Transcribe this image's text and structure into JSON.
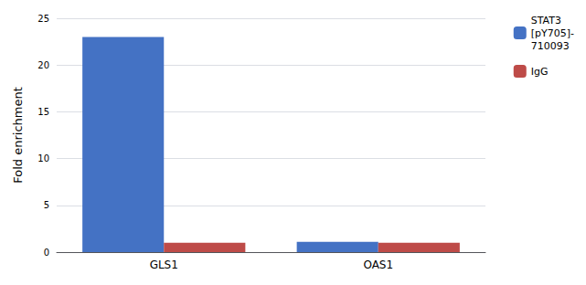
{
  "chart_data": {
    "type": "bar",
    "ylabel": "Fold enrichment",
    "categories": [
      "GLS1",
      "OAS1"
    ],
    "series": [
      {
        "name": "STAT3\n[pY705]-\n710093",
        "color": "#4472C4",
        "values": [
          23,
          1.1
        ]
      },
      {
        "name": "IgG",
        "color": "#BE4B48",
        "values": [
          1.0,
          1.0
        ]
      }
    ],
    "ylim": [
      0,
      25
    ],
    "yticks": [
      0,
      5,
      10,
      15,
      20,
      25
    ],
    "grid": true,
    "legend": "upper right"
  }
}
